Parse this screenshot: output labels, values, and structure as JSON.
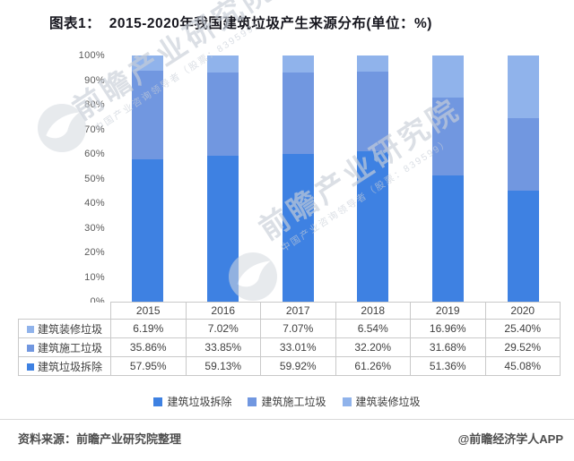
{
  "title": "图表1：  2015-2020年我国建筑垃圾产生来源分布(单位：%)",
  "watermark": {
    "main": "前瞻产业研究院",
    "sub": "中国产业咨询领导者（股票：839599）"
  },
  "footer": {
    "source": "资料来源：前瞻产业研究院整理",
    "brand": "@前瞻经济学人APP"
  },
  "colors": {
    "bar_demolition": "#3E81E2",
    "bar_construction": "#7197E0",
    "bar_decoration": "#90B3EB",
    "axis_text": "#595959",
    "table_border": "#c9c9c9"
  },
  "chart_data": {
    "type": "bar",
    "stacked": true,
    "title": "2015-2020年我国建筑垃圾产生来源分布",
    "unit": "%",
    "categories": [
      "2015",
      "2016",
      "2017",
      "2018",
      "2019",
      "2020"
    ],
    "series": [
      {
        "name": "建筑垃圾拆除",
        "color": "#3E81E2",
        "values": [
          57.95,
          59.13,
          59.92,
          61.26,
          51.36,
          45.08
        ]
      },
      {
        "name": "建筑施工垃圾",
        "color": "#7197E0",
        "values": [
          35.86,
          33.85,
          33.01,
          32.2,
          31.68,
          29.52
        ]
      },
      {
        "name": "建筑装修垃圾",
        "color": "#90B3EB",
        "values": [
          6.19,
          7.02,
          7.07,
          6.54,
          16.96,
          25.4
        ]
      }
    ],
    "table_row_order": [
      2,
      1,
      0
    ],
    "ylim": [
      0,
      100
    ],
    "ytick_step": 10,
    "ytick_suffix": "%",
    "grid": false,
    "legend_position": "bottom"
  }
}
